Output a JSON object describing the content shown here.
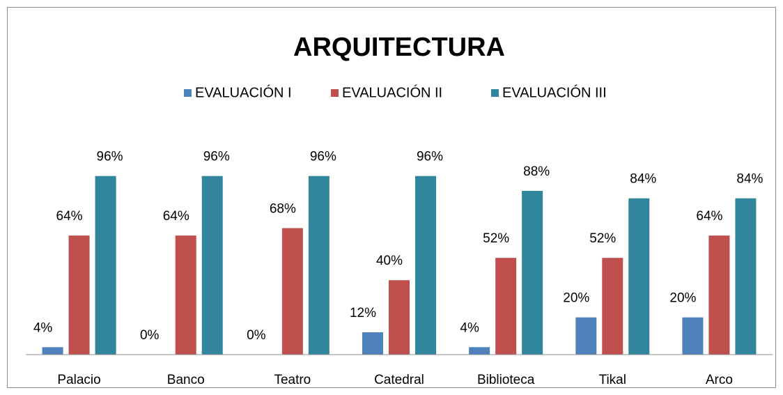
{
  "chart_data": {
    "type": "bar",
    "title": "ARQUITECTURA",
    "categories": [
      "Palacio",
      "Banco",
      "Teatro",
      "Catedral",
      "Biblioteca",
      "Tikal",
      "Arco"
    ],
    "series": [
      {
        "name": "EVALUACIÓN I",
        "color": "#4f81bd",
        "values": [
          4,
          0,
          0,
          12,
          4,
          20,
          20
        ],
        "value_labels": [
          "4%",
          "0%",
          "0%",
          "12%",
          "4%",
          "20%",
          "20%"
        ]
      },
      {
        "name": "EVALUACIÓN II",
        "color": "#c0504d",
        "values": [
          64,
          64,
          68,
          40,
          52,
          52,
          64
        ],
        "value_labels": [
          "64%",
          "64%",
          "68%",
          "40%",
          "52%",
          "52%",
          "64%"
        ]
      },
      {
        "name": "EVALUACIÓN III",
        "color": "#31859c",
        "values": [
          96,
          96,
          96,
          96,
          88,
          84,
          84
        ],
        "value_labels": [
          "96%",
          "96%",
          "96%",
          "96%",
          "88%",
          "84%",
          "84%"
        ]
      }
    ],
    "ylim": [
      0,
      100
    ],
    "legend": "top"
  }
}
